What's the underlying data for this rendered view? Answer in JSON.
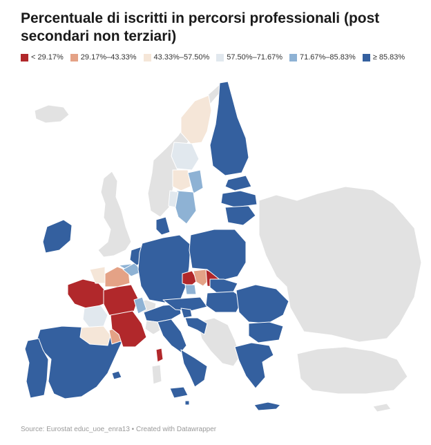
{
  "title": "Percentuale di iscritti in percorsi professionali (post secondari non terziari)",
  "legend": [
    {
      "label": "< 29.17%",
      "color": "#b1282b"
    },
    {
      "label": "29.17%–43.33%",
      "color": "#e4a286"
    },
    {
      "label": "43.33%–57.50%",
      "color": "#f5e6d8"
    },
    {
      "label": "57.50%–71.67%",
      "color": "#e1e8ee"
    },
    {
      "label": "71.67%–85.83%",
      "color": "#8eb2d4"
    },
    {
      "label": "≥ 85.83%",
      "color": "#34609f"
    }
  ],
  "colors": {
    "nodata": "#e2e2e2",
    "background": "#ffffff",
    "border": "#ffffff"
  },
  "footer": {
    "source": "Source: Eurostat educ_uoe_enra13",
    "separator": "•",
    "credit": "Created with Datawrapper"
  }
}
